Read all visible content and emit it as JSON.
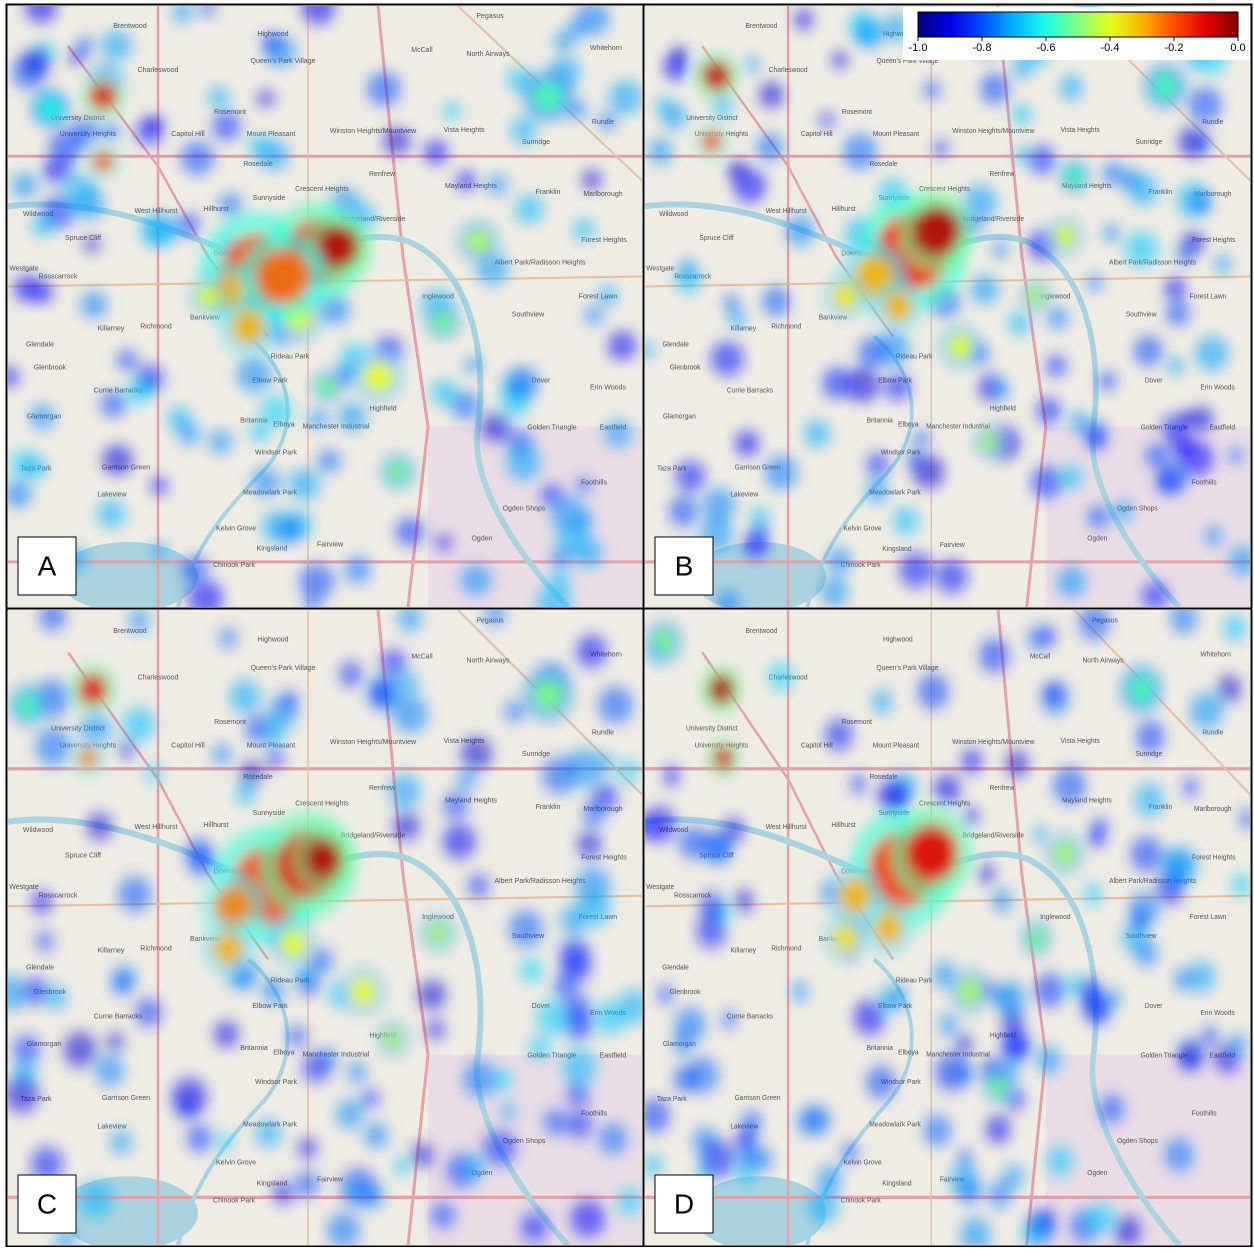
{
  "panels": [
    {
      "label": "A"
    },
    {
      "label": "B"
    },
    {
      "label": "C"
    },
    {
      "label": "D"
    }
  ],
  "colorbar": {
    "clim": [
      -1,
      0
    ],
    "ticks": [
      {
        "value": -1,
        "label": "-1.0"
      },
      -0.8,
      -0.6,
      -0.4,
      -0.2,
      {
        "value": 0,
        "label": "0.0"
      }
    ]
  },
  "place_names": [
    "Brentwood",
    "Highwood",
    "Queen's Park Village",
    "Charleswood",
    "Pegasus",
    "McCall",
    "North Airways",
    "Whitehorn",
    "University District",
    "Rosemont",
    "Capitol Hill",
    "Mount Pleasant",
    "Winston Heights/Mountview",
    "Vista Heights",
    "Sunridge",
    "Rundle",
    "University Heights",
    "Rosedale",
    "Renfrew",
    "Mayland Heights",
    "Franklin",
    "Marlborough",
    "Crescent Heights",
    "Sunnyside",
    "Hillhurst",
    "West Hillhurst",
    "Bridgeland/Riverside",
    "Wildwood",
    "Spruce Cliff",
    "Forest Heights",
    "Downtown West End",
    "Albert Park/Radisson Heights",
    "Westgate",
    "Rosscarrock",
    "Forest Lawn",
    "Glendale",
    "Killarney",
    "Richmond",
    "Bankview",
    "Inglewood",
    "Southview",
    "Glenbrook",
    "Rideau Park",
    "Elbow Park",
    "Currie Barracks",
    "Dover",
    "Erin Woods",
    "Glamorgan",
    "Britannia",
    "Elboya",
    "Manchester Industrial",
    "Highfield",
    "Golden Triangle",
    "Eastfield",
    "Taza Park",
    "Garrison Green",
    "Windsor Park",
    "Lakeview",
    "Meadowlark Park",
    "Ogden Shops",
    "Kelvin Grove",
    "Fairview",
    "Kingsland",
    "Ogden",
    "Chinook Park",
    "Foothills"
  ]
}
